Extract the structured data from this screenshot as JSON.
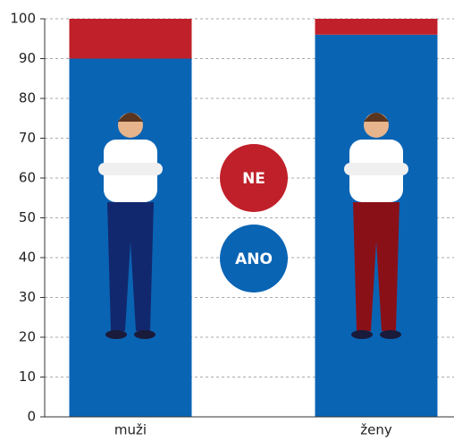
{
  "chart_data": {
    "type": "stacked-bar",
    "categories": [
      "muži",
      "ženy"
    ],
    "series": [
      {
        "name": "ANO",
        "color": "#0a64b4",
        "values": [
          90,
          96
        ]
      },
      {
        "name": "NE",
        "color": "#c0202a",
        "values": [
          10,
          4
        ]
      }
    ],
    "ylim": [
      0,
      100
    ],
    "yticks": [
      0,
      10,
      20,
      30,
      40,
      50,
      60,
      70,
      80,
      90,
      100
    ],
    "grid": true
  }
}
